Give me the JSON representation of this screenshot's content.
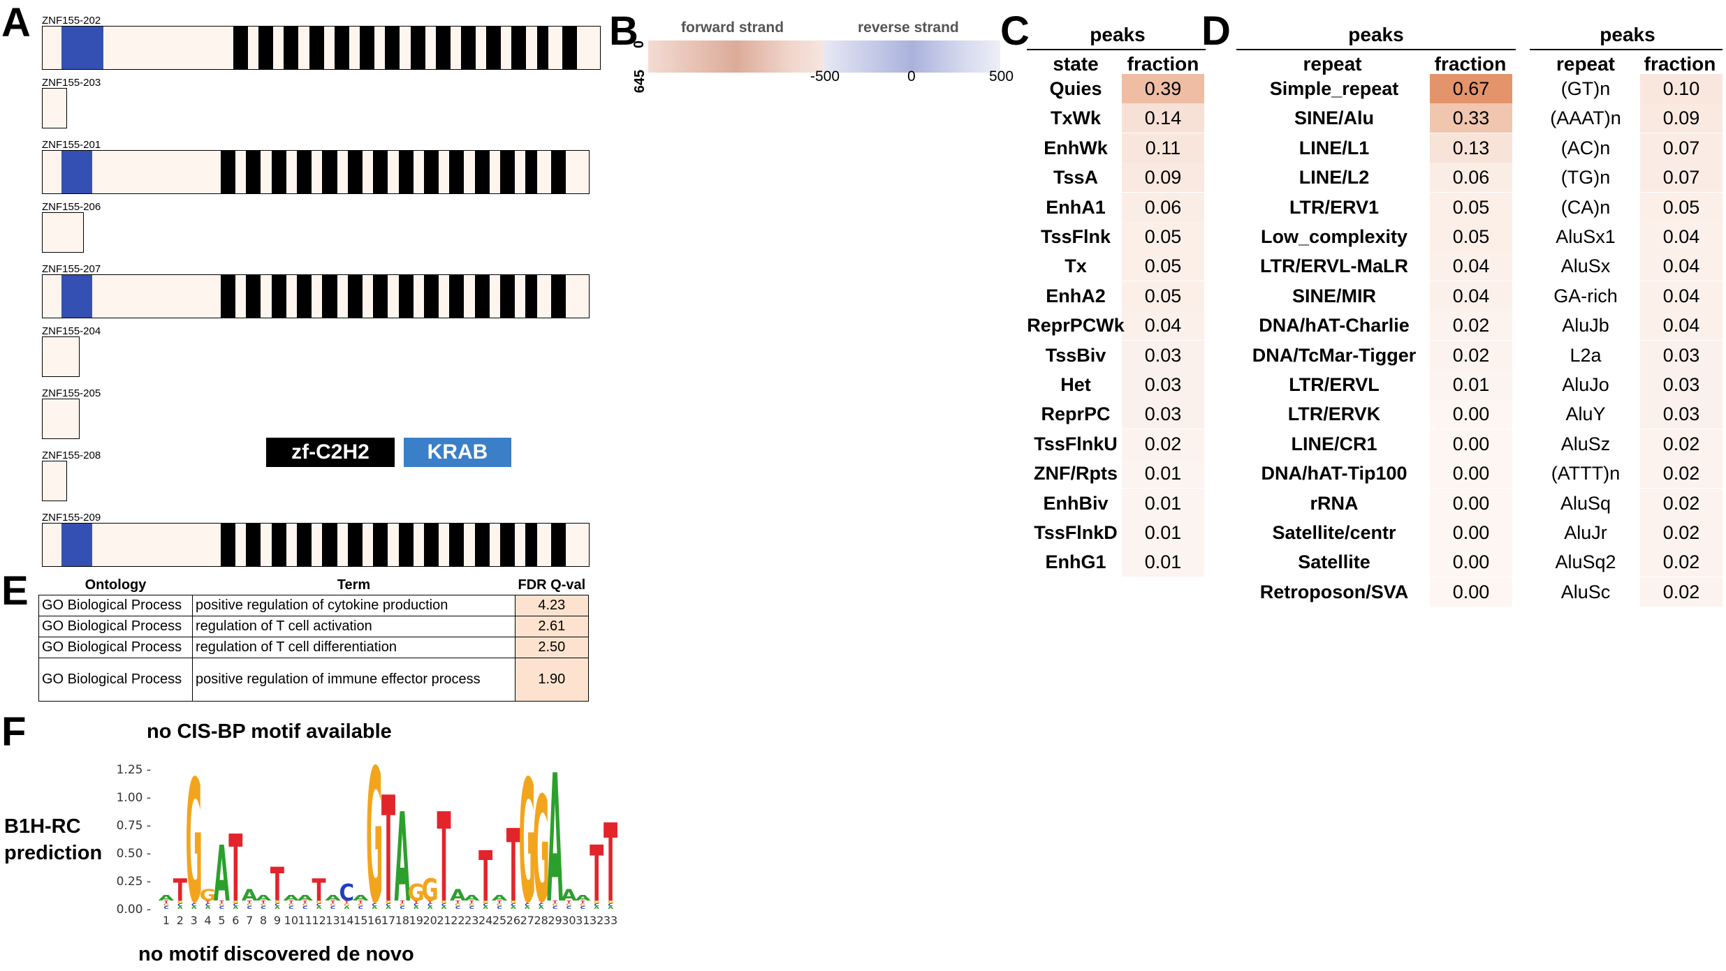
{
  "panel_labels": {
    "a": "A",
    "b": "B",
    "c": "C",
    "d": "D",
    "e": "E",
    "f": "F"
  },
  "panel_a": {
    "transcripts": [
      {
        "label": "ZNF155-202",
        "full": true
      },
      {
        "label": "ZNF155-203",
        "full": false
      },
      {
        "label": "ZNF155-201",
        "full": true
      },
      {
        "label": "ZNF155-206",
        "full": false
      },
      {
        "label": "ZNF155-207",
        "full": true
      },
      {
        "label": "ZNF155-204",
        "full": false
      },
      {
        "label": "ZNF155-205",
        "full": false
      },
      {
        "label": "ZNF155-208",
        "full": false
      },
      {
        "label": "ZNF155-209",
        "full": true
      }
    ],
    "legend": {
      "zf": "zf-C2H2",
      "krab": "KRAB"
    },
    "colors": {
      "krab": "#3450b3",
      "zf": "#000000",
      "krab_legend": "#3a7fc7",
      "exon_bg": "#fff5ef"
    }
  },
  "panel_b": {
    "forward_label": "forward strand",
    "reverse_label": "reverse strand",
    "y_top": "0",
    "y_bottom": "645",
    "x_ticks": [
      "-500",
      "0",
      "500"
    ],
    "colors": {
      "forward": "#c9866f",
      "reverse": "#6f7fc4"
    }
  },
  "panel_c": {
    "header": "peaks",
    "col_state": "state",
    "col_fraction": "fraction",
    "rows": [
      {
        "name": "Quies",
        "value": "0.39",
        "num": 0.39
      },
      {
        "name": "TxWk",
        "value": "0.14",
        "num": 0.14
      },
      {
        "name": "EnhWk",
        "value": "0.11",
        "num": 0.11
      },
      {
        "name": "TssA",
        "value": "0.09",
        "num": 0.09
      },
      {
        "name": "EnhA1",
        "value": "0.06",
        "num": 0.06
      },
      {
        "name": "TssFlnk",
        "value": "0.05",
        "num": 0.05
      },
      {
        "name": "Tx",
        "value": "0.05",
        "num": 0.05
      },
      {
        "name": "EnhA2",
        "value": "0.05",
        "num": 0.05
      },
      {
        "name": "ReprPCWk",
        "value": "0.04",
        "num": 0.04
      },
      {
        "name": "TssBiv",
        "value": "0.03",
        "num": 0.03
      },
      {
        "name": "Het",
        "value": "0.03",
        "num": 0.03
      },
      {
        "name": "ReprPC",
        "value": "0.03",
        "num": 0.03
      },
      {
        "name": "TssFlnkU",
        "value": "0.02",
        "num": 0.02
      },
      {
        "name": "ZNF/Rpts",
        "value": "0.01",
        "num": 0.01
      },
      {
        "name": "EnhBiv",
        "value": "0.01",
        "num": 0.01
      },
      {
        "name": "TssFlnkD",
        "value": "0.01",
        "num": 0.01
      },
      {
        "name": "EnhG1",
        "value": "0.01",
        "num": 0.01
      }
    ]
  },
  "panel_d": {
    "header_left": "peaks",
    "header_right": "peaks",
    "col_repeat": "repeat",
    "col_fraction": "fraction",
    "left_rows": [
      {
        "name": "Simple_repeat",
        "value": "0.67",
        "num": 0.67
      },
      {
        "name": "SINE/Alu",
        "value": "0.33",
        "num": 0.33
      },
      {
        "name": "LINE/L1",
        "value": "0.13",
        "num": 0.13
      },
      {
        "name": "LINE/L2",
        "value": "0.06",
        "num": 0.06
      },
      {
        "name": "LTR/ERV1",
        "value": "0.05",
        "num": 0.05
      },
      {
        "name": "Low_complexity",
        "value": "0.05",
        "num": 0.05
      },
      {
        "name": "LTR/ERVL-MaLR",
        "value": "0.04",
        "num": 0.04
      },
      {
        "name": "SINE/MIR",
        "value": "0.04",
        "num": 0.04
      },
      {
        "name": "DNA/hAT-Charlie",
        "value": "0.02",
        "num": 0.02
      },
      {
        "name": "DNA/TcMar-Tigger",
        "value": "0.02",
        "num": 0.02
      },
      {
        "name": "LTR/ERVL",
        "value": "0.01",
        "num": 0.01
      },
      {
        "name": "LTR/ERVK",
        "value": "0.00",
        "num": 0.0
      },
      {
        "name": "LINE/CR1",
        "value": "0.00",
        "num": 0.0
      },
      {
        "name": "DNA/hAT-Tip100",
        "value": "0.00",
        "num": 0.0
      },
      {
        "name": "rRNA",
        "value": "0.00",
        "num": 0.0
      },
      {
        "name": "Satellite/centr",
        "value": "0.00",
        "num": 0.0
      },
      {
        "name": "Satellite",
        "value": "0.00",
        "num": 0.0
      },
      {
        "name": "Retroposon/SVA",
        "value": "0.00",
        "num": 0.0
      }
    ],
    "right_rows": [
      {
        "name": "(GT)n",
        "value": "0.10",
        "num": 0.1
      },
      {
        "name": "(AAAT)n",
        "value": "0.09",
        "num": 0.09
      },
      {
        "name": "(AC)n",
        "value": "0.07",
        "num": 0.07
      },
      {
        "name": "(TG)n",
        "value": "0.07",
        "num": 0.07
      },
      {
        "name": "(CA)n",
        "value": "0.05",
        "num": 0.05
      },
      {
        "name": "AluSx1",
        "value": "0.04",
        "num": 0.04
      },
      {
        "name": "AluSx",
        "value": "0.04",
        "num": 0.04
      },
      {
        "name": "GA-rich",
        "value": "0.04",
        "num": 0.04
      },
      {
        "name": "AluJb",
        "value": "0.04",
        "num": 0.04
      },
      {
        "name": "L2a",
        "value": "0.03",
        "num": 0.03
      },
      {
        "name": "AluJo",
        "value": "0.03",
        "num": 0.03
      },
      {
        "name": "AluY",
        "value": "0.03",
        "num": 0.03
      },
      {
        "name": "AluSz",
        "value": "0.02",
        "num": 0.02
      },
      {
        "name": "(ATTT)n",
        "value": "0.02",
        "num": 0.02
      },
      {
        "name": "AluSq",
        "value": "0.02",
        "num": 0.02
      },
      {
        "name": "AluJr",
        "value": "0.02",
        "num": 0.02
      },
      {
        "name": "AluSq2",
        "value": "0.02",
        "num": 0.02
      },
      {
        "name": "AluSc",
        "value": "0.02",
        "num": 0.02
      }
    ]
  },
  "panel_e": {
    "headers": {
      "ontology": "Ontology",
      "term": "Term",
      "fdr": "FDR Q-val"
    },
    "rows": [
      {
        "ontology": "GO Biological Process",
        "term": "positive regulation of cytokine production",
        "fdr": "4.23"
      },
      {
        "ontology": "GO Biological Process",
        "term": "regulation of T cell activation",
        "fdr": "2.61"
      },
      {
        "ontology": "GO Biological Process",
        "term": "regulation of T cell differentiation",
        "fdr": "2.50"
      },
      {
        "ontology": "GO Biological Process",
        "term": "positive regulation of immune effector process",
        "fdr": "1.90"
      }
    ]
  },
  "panel_f": {
    "cisbp_note": "no CIS-BP motif available",
    "b1h_label_line1": "B1H-RC",
    "b1h_label_line2": "prediction",
    "denovo_note": "no motif discovered de novo",
    "chart_data": {
      "type": "sequence-logo",
      "y_ticks": [
        "0.00",
        "0.25",
        "0.50",
        "0.75",
        "1.00",
        "1.25"
      ],
      "ylim": [
        0,
        1.25
      ],
      "positions": [
        "1",
        "2",
        "3",
        "4",
        "5",
        "6",
        "7",
        "8",
        "9",
        "10",
        "11",
        "12",
        "13",
        "14",
        "15",
        "16",
        "17",
        "18",
        "19",
        "20",
        "21",
        "22",
        "23",
        "24",
        "25",
        "26",
        "27",
        "28",
        "29",
        "30",
        "31",
        "32",
        "33"
      ],
      "dominant_letters": [
        {
          "pos": 1,
          "letter": "A",
          "height": 0.05
        },
        {
          "pos": 2,
          "letter": "T",
          "height": 0.2
        },
        {
          "pos": 3,
          "letter": "G",
          "height": 1.1
        },
        {
          "pos": 4,
          "letter": "G",
          "height": 0.1
        },
        {
          "pos": 5,
          "letter": "A",
          "height": 0.5
        },
        {
          "pos": 6,
          "letter": "T",
          "height": 0.6
        },
        {
          "pos": 7,
          "letter": "A",
          "height": 0.1
        },
        {
          "pos": 8,
          "letter": "A",
          "height": 0.05
        },
        {
          "pos": 9,
          "letter": "T",
          "height": 0.3
        },
        {
          "pos": 10,
          "letter": "A",
          "height": 0.05
        },
        {
          "pos": 11,
          "letter": "A",
          "height": 0.05
        },
        {
          "pos": 12,
          "letter": "T",
          "height": 0.2
        },
        {
          "pos": 13,
          "letter": "A",
          "height": 0.05
        },
        {
          "pos": 14,
          "letter": "C",
          "height": 0.15
        },
        {
          "pos": 15,
          "letter": "A",
          "height": 0.05
        },
        {
          "pos": 16,
          "letter": "G",
          "height": 1.2
        },
        {
          "pos": 17,
          "letter": "T",
          "height": 0.95
        },
        {
          "pos": 18,
          "letter": "A",
          "height": 0.8
        },
        {
          "pos": 19,
          "letter": "G",
          "height": 0.15
        },
        {
          "pos": 20,
          "letter": "G",
          "height": 0.2
        },
        {
          "pos": 21,
          "letter": "T",
          "height": 0.8
        },
        {
          "pos": 22,
          "letter": "A",
          "height": 0.1
        },
        {
          "pos": 23,
          "letter": "A",
          "height": 0.05
        },
        {
          "pos": 24,
          "letter": "T",
          "height": 0.45
        },
        {
          "pos": 25,
          "letter": "A",
          "height": 0.05
        },
        {
          "pos": 26,
          "letter": "T",
          "height": 0.65
        },
        {
          "pos": 27,
          "letter": "G",
          "height": 1.1
        },
        {
          "pos": 28,
          "letter": "G",
          "height": 0.95
        },
        {
          "pos": 29,
          "letter": "A",
          "height": 1.15
        },
        {
          "pos": 30,
          "letter": "A",
          "height": 0.1
        },
        {
          "pos": 31,
          "letter": "A",
          "height": 0.05
        },
        {
          "pos": 32,
          "letter": "T",
          "height": 0.5
        },
        {
          "pos": 33,
          "letter": "T",
          "height": 0.7
        }
      ],
      "colors": {
        "A": "#2ca02c",
        "C": "#1f3fbf",
        "G": "#f2a51c",
        "T": "#e3242b"
      }
    }
  }
}
